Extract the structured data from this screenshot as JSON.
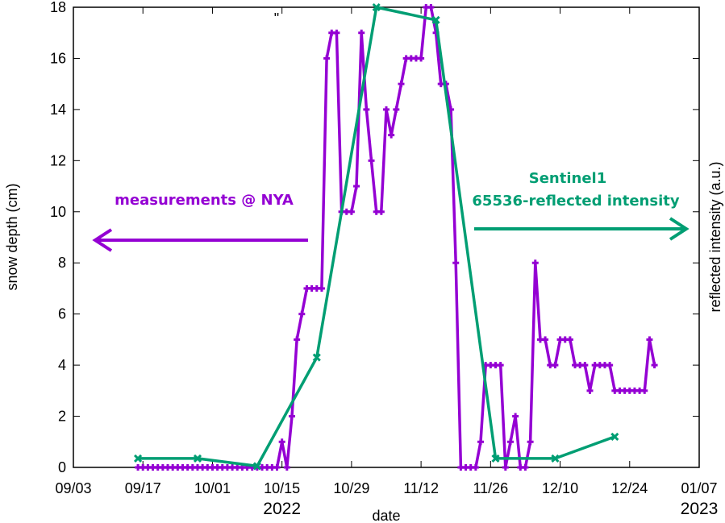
{
  "chart_data": {
    "type": "line",
    "title": "\"",
    "xlabel": "date",
    "ylabel": "snow depth (cm)",
    "y2label": "reflected intensity (a.u.)",
    "xlim": [
      "2022-09-03",
      "2023-01-07"
    ],
    "ylim": [
      0,
      18
    ],
    "x_ticks": [
      "09/03",
      "09/17",
      "10/01",
      "10/15",
      "10/29",
      "11/12",
      "11/26",
      "12/10",
      "12/24",
      "01/07"
    ],
    "y_ticks": [
      0,
      2,
      4,
      6,
      8,
      10,
      12,
      14,
      16,
      18
    ],
    "year_labels": [
      {
        "date": "2022-10-15",
        "text": "2022"
      },
      {
        "date": "2023-01-07",
        "text": "2023"
      }
    ],
    "grid": false,
    "series": [
      {
        "name": "measurements @ NYA",
        "color": "#9400D3",
        "marker": "plus",
        "points": [
          [
            "2022-09-16",
            0
          ],
          [
            "2022-09-17",
            0
          ],
          [
            "2022-09-18",
            0
          ],
          [
            "2022-09-19",
            0
          ],
          [
            "2022-09-20",
            0
          ],
          [
            "2022-09-21",
            0
          ],
          [
            "2022-09-22",
            0
          ],
          [
            "2022-09-23",
            0
          ],
          [
            "2022-09-24",
            0
          ],
          [
            "2022-09-25",
            0
          ],
          [
            "2022-09-26",
            0
          ],
          [
            "2022-09-27",
            0
          ],
          [
            "2022-09-28",
            0
          ],
          [
            "2022-09-29",
            0
          ],
          [
            "2022-09-30",
            0
          ],
          [
            "2022-10-01",
            0
          ],
          [
            "2022-10-02",
            0
          ],
          [
            "2022-10-03",
            0
          ],
          [
            "2022-10-04",
            0
          ],
          [
            "2022-10-05",
            0
          ],
          [
            "2022-10-06",
            0
          ],
          [
            "2022-10-07",
            0
          ],
          [
            "2022-10-08",
            0
          ],
          [
            "2022-10-09",
            0
          ],
          [
            "2022-10-10",
            0
          ],
          [
            "2022-10-11",
            0
          ],
          [
            "2022-10-12",
            0
          ],
          [
            "2022-10-13",
            0
          ],
          [
            "2022-10-14",
            0
          ],
          [
            "2022-10-15",
            1
          ],
          [
            "2022-10-16",
            0
          ],
          [
            "2022-10-17",
            2
          ],
          [
            "2022-10-18",
            5
          ],
          [
            "2022-10-19",
            6
          ],
          [
            "2022-10-20",
            7
          ],
          [
            "2022-10-21",
            7
          ],
          [
            "2022-10-22",
            7
          ],
          [
            "2022-10-23",
            7
          ],
          [
            "2022-10-24",
            16
          ],
          [
            "2022-10-25",
            17
          ],
          [
            "2022-10-26",
            17
          ],
          [
            "2022-10-27",
            10
          ],
          [
            "2022-10-28",
            10
          ],
          [
            "2022-10-29",
            10
          ],
          [
            "2022-10-30",
            11
          ],
          [
            "2022-10-31",
            17
          ],
          [
            "2022-11-01",
            14
          ],
          [
            "2022-11-02",
            12
          ],
          [
            "2022-11-03",
            10
          ],
          [
            "2022-11-04",
            10
          ],
          [
            "2022-11-05",
            14
          ],
          [
            "2022-11-06",
            13
          ],
          [
            "2022-11-07",
            14
          ],
          [
            "2022-11-08",
            15
          ],
          [
            "2022-11-09",
            16
          ],
          [
            "2022-11-10",
            16
          ],
          [
            "2022-11-11",
            16
          ],
          [
            "2022-11-12",
            16
          ],
          [
            "2022-11-13",
            18
          ],
          [
            "2022-11-14",
            18
          ],
          [
            "2022-11-15",
            17
          ],
          [
            "2022-11-16",
            15
          ],
          [
            "2022-11-17",
            15
          ],
          [
            "2022-11-18",
            14
          ],
          [
            "2022-11-19",
            8
          ],
          [
            "2022-11-20",
            0
          ],
          [
            "2022-11-21",
            0
          ],
          [
            "2022-11-22",
            0
          ],
          [
            "2022-11-23",
            0
          ],
          [
            "2022-11-24",
            1
          ],
          [
            "2022-11-25",
            4
          ],
          [
            "2022-11-26",
            4
          ],
          [
            "2022-11-27",
            4
          ],
          [
            "2022-11-28",
            4
          ],
          [
            "2022-11-29",
            0
          ],
          [
            "2022-11-30",
            1
          ],
          [
            "2022-12-01",
            2
          ],
          [
            "2022-12-02",
            0
          ],
          [
            "2022-12-03",
            0
          ],
          [
            "2022-12-04",
            1
          ],
          [
            "2022-12-05",
            8
          ],
          [
            "2022-12-06",
            5
          ],
          [
            "2022-12-07",
            5
          ],
          [
            "2022-12-08",
            4
          ],
          [
            "2022-12-09",
            4
          ],
          [
            "2022-12-10",
            5
          ],
          [
            "2022-12-11",
            5
          ],
          [
            "2022-12-12",
            5
          ],
          [
            "2022-12-13",
            4
          ],
          [
            "2022-12-14",
            4
          ],
          [
            "2022-12-15",
            4
          ],
          [
            "2022-12-16",
            3
          ],
          [
            "2022-12-17",
            4
          ],
          [
            "2022-12-18",
            4
          ],
          [
            "2022-12-19",
            4
          ],
          [
            "2022-12-20",
            4
          ],
          [
            "2022-12-21",
            3
          ],
          [
            "2022-12-22",
            3
          ],
          [
            "2022-12-23",
            3
          ],
          [
            "2022-12-24",
            3
          ],
          [
            "2022-12-25",
            3
          ],
          [
            "2022-12-26",
            3
          ],
          [
            "2022-12-27",
            3
          ],
          [
            "2022-12-28",
            5
          ],
          [
            "2022-12-29",
            4
          ]
        ]
      },
      {
        "name": "Sentinel1",
        "color": "#009E73",
        "marker": "cross",
        "points": [
          [
            "2022-09-16",
            0.35
          ],
          [
            "2022-09-28",
            0.35
          ],
          [
            "2022-10-10",
            0.05
          ],
          [
            "2022-10-22",
            4.3
          ],
          [
            "2022-11-03",
            18.0
          ],
          [
            "2022-11-15",
            17.5
          ],
          [
            "2022-11-27",
            0.35
          ],
          [
            "2022-12-09",
            0.35
          ],
          [
            "2022-12-21",
            1.2
          ]
        ]
      }
    ],
    "annotations": {
      "measurements": "measurements @ NYA",
      "sentinel_line1": "Sentinel1",
      "sentinel_line2": "65536-reflected intensity"
    }
  }
}
